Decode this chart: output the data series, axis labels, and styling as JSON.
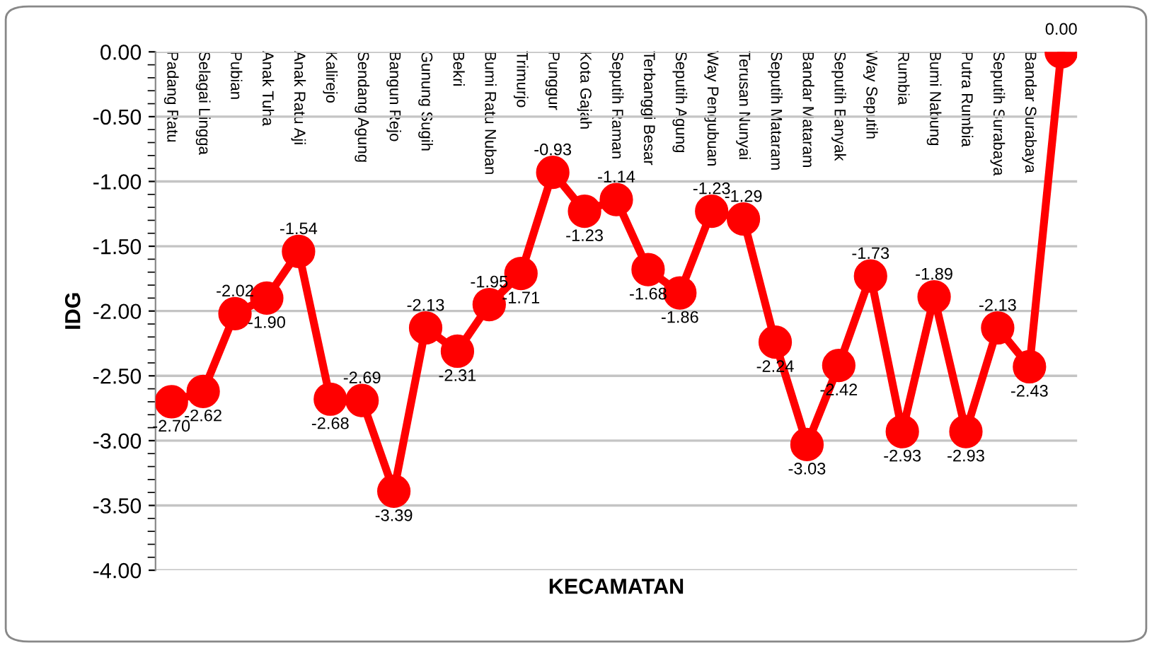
{
  "chart_data": {
    "type": "line",
    "xlabel": "KECAMATAN",
    "ylabel": "IDG",
    "categories": [
      "Padang Ratu",
      "Selagai Lingga",
      "Pubian",
      "Anak Tuha",
      "Anak Ratu Aji",
      "Kalirejo",
      "Sendang Agung",
      "Bangun Rejo",
      "Gunung Sugih",
      "Bekri",
      "Bumi Ratu Nuban",
      "Trimurjo",
      "Punggur",
      "Kota Gajah",
      "Seputih Raman",
      "Terbanggi Besar",
      "Seputih Agung",
      "Way Pengubuan",
      "Terusan Nunyai",
      "Seputih Mataram",
      "Bandar Mataram",
      "Seputih Banyak",
      "Way Seputih",
      "Rumbia",
      "Bumi Nabung",
      "Putra Rumbia",
      "Seputih Surabaya",
      "Bandar Surabaya",
      null
    ],
    "series": [
      {
        "color": "#ff0000",
        "values": [
          -2.7,
          -2.62,
          -2.02,
          -1.9,
          -1.54,
          -2.68,
          -2.69,
          -3.39,
          -2.13,
          -2.31,
          -1.95,
          -1.71,
          -0.93,
          -1.23,
          -1.14,
          -1.68,
          -1.86,
          -1.23,
          -1.29,
          -2.24,
          -3.03,
          -2.42,
          -1.73,
          -2.93,
          -1.89,
          -2.93,
          -2.13,
          -2.43,
          0.0
        ]
      }
    ],
    "ylim": [
      -4,
      0
    ],
    "yticks": [
      {
        "value": -4,
        "label": "-4.00"
      },
      {
        "value": -3.5,
        "label": "-3.50"
      },
      {
        "value": -3,
        "label": "-3.00"
      },
      {
        "value": -2.5,
        "label": "-2.50"
      },
      {
        "value": -2,
        "label": "-2.00"
      },
      {
        "value": -1.5,
        "label": "-1.50"
      },
      {
        "value": -1,
        "label": "-1.00"
      },
      {
        "value": -0.5,
        "label": "-0.50"
      },
      {
        "value": 0,
        "label": "0.00"
      }
    ],
    "value_labels": [
      "-2.70",
      "-2.62",
      "-2.02",
      "-1.90",
      "-1.54",
      "-2.68",
      "-2.69",
      "-3.39",
      "-2.13",
      "-2.31",
      "-1.95",
      "-1.71",
      "-0.93",
      "-1.23",
      "-1.14",
      "-1.68",
      "-1.86",
      "-1.23",
      "-1.29",
      "-2.24",
      "-3.03",
      "-2.42",
      "-1.73",
      "-2.93",
      "-1.89",
      "-2.93",
      "-2.13",
      "-2.43",
      "0.00"
    ],
    "grid": "y",
    "marker": "circle",
    "line_style": "solid",
    "legend": false
  }
}
